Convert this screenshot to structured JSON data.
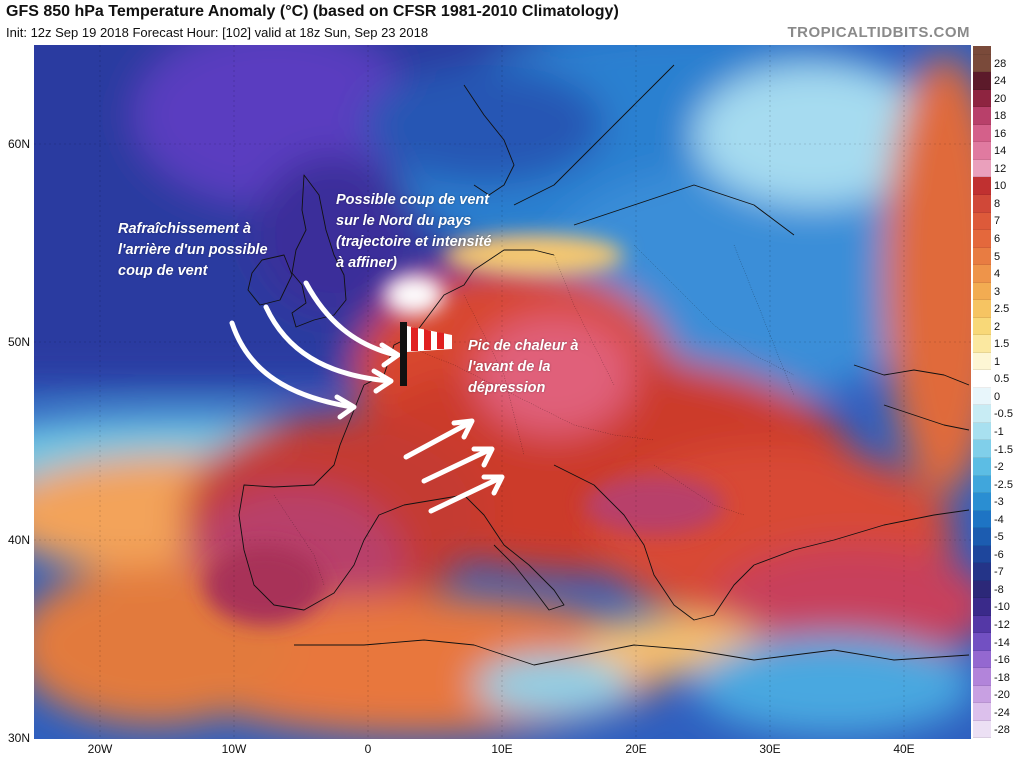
{
  "header": {
    "title": "GFS 850 hPa Temperature Anomaly (°C) (based on CFSR 1981-2010 Climatology)",
    "subtitle": "Init: 12z Sep 19 2018   Forecast Hour: [102]   valid at 18z Sun, Sep 23 2018",
    "brand": "TROPICALTIDBITS.COM"
  },
  "axes": {
    "lat_labels": [
      "60N",
      "50N",
      "40N",
      "30N"
    ],
    "lon_labels": [
      "20W",
      "10W",
      "0",
      "10E",
      "20E",
      "30E",
      "40E"
    ]
  },
  "annotations": {
    "left_note": [
      "Rafraîchissement à",
      "l'arrière d'un possible",
      "coup de vent"
    ],
    "north_note": [
      "Possible coup de vent",
      "sur le Nord du pays",
      "(trajectoire et intensité",
      "à affiner)"
    ],
    "heat_note": [
      "Pic de chaleur à",
      "l'avant de la",
      "dépression"
    ]
  },
  "colorbar": {
    "labels": [
      "28",
      "24",
      "20",
      "18",
      "16",
      "14",
      "12",
      "10",
      "8",
      "7",
      "6",
      "5",
      "4",
      "3",
      "2.5",
      "2",
      "1.5",
      "1",
      "0.5",
      "0",
      "-0.5",
      "-1",
      "-1.5",
      "-2",
      "-2.5",
      "-3",
      "-4",
      "-5",
      "-6",
      "-7",
      "-8",
      "-10",
      "-12",
      "-14",
      "-16",
      "-18",
      "-20",
      "-24",
      "-28"
    ],
    "colors": [
      "#7a4a3a",
      "#5c1a2a",
      "#8e2440",
      "#b8406a",
      "#d4608a",
      "#e07aa0",
      "#eaa0bc",
      "#c03030",
      "#d04838",
      "#dd5a3a",
      "#e4683c",
      "#e87c42",
      "#ee944a",
      "#f2ac52",
      "#f6c462",
      "#f8d878",
      "#fbe8a0",
      "#fdf6d4",
      "#ffffff",
      "#e8f6fb",
      "#c8ecf4",
      "#a8e0f0",
      "#80cfea",
      "#5cbde4",
      "#40a6dc",
      "#2a8ed2",
      "#1e74c4",
      "#1c5cb0",
      "#1e469c",
      "#243488",
      "#2c2878",
      "#3a2a8a",
      "#5438a6",
      "#7250c2",
      "#9468d0",
      "#b284da",
      "#c8a0e2",
      "#dcc0ec",
      "#ece0f4"
    ]
  },
  "colors": {
    "arrow": "#ffffff",
    "windsock_pole": "#111111",
    "windsock_stripe_red": "#e02020",
    "windsock_stripe_white": "#ffffff"
  }
}
